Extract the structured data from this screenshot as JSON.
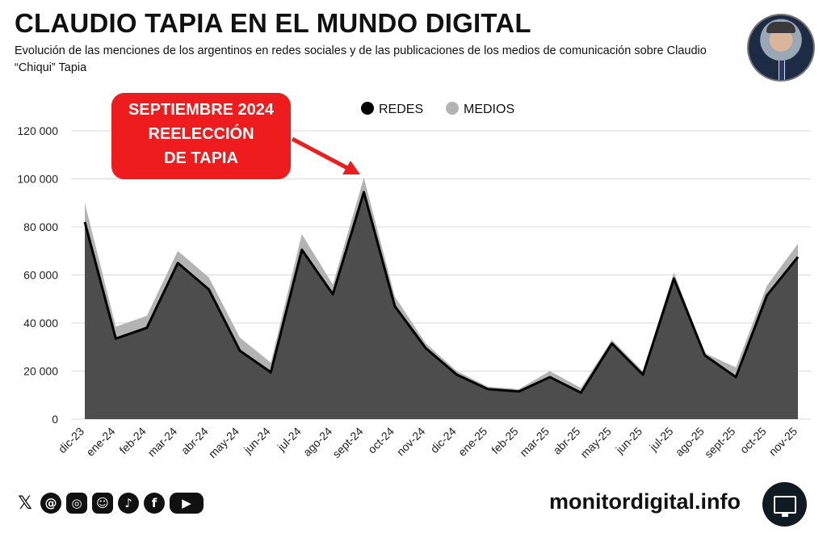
{
  "header": {
    "title": "CLAUDIO TAPIA EN EL MUNDO DIGITAL",
    "subtitle": "Evolución de las menciones de los argentinos en redes sociales y de las publicaciones de los medios de comunicación sobre Claudio “Chiqui” Tapia"
  },
  "footer": {
    "site": "monitordigital.info",
    "social_icons": [
      "x-icon",
      "threads-icon",
      "instagram-icon",
      "kick-icon",
      "tiktok-icon",
      "facebook-icon",
      "youtube-icon"
    ]
  },
  "colors": {
    "redes_fill": "#4d4d4d",
    "redes_line": "#000000",
    "medios": "#b3b3b3",
    "callout": "#ee1c1c",
    "grid": "#d9d9d9"
  },
  "chart_data": {
    "type": "area",
    "title": "CLAUDIO TAPIA EN EL MUNDO DIGITAL",
    "categories": [
      "dic-23",
      "ene-24",
      "feb-24",
      "mar-24",
      "abr-24",
      "may-24",
      "jun-24",
      "jul-24",
      "ago-24",
      "sept-24",
      "oct-24",
      "nov-24",
      "dic-24",
      "ene-25",
      "feb-25",
      "mar-25",
      "abr-25",
      "may-25",
      "jun-25",
      "jul-25",
      "ago-25",
      "sept-25",
      "oct-25",
      "nov-25"
    ],
    "series": [
      {
        "name": "REDES",
        "values": [
          82000,
          33500,
          38000,
          65000,
          54000,
          28500,
          19500,
          70500,
          52000,
          94500,
          47000,
          29500,
          18500,
          12500,
          11500,
          17500,
          11000,
          31500,
          18500,
          58500,
          26500,
          17500,
          51500,
          67500
        ]
      },
      {
        "name": "MEDIOS",
        "values": [
          90000,
          38500,
          43000,
          70000,
          59000,
          34000,
          23500,
          77000,
          56000,
          100500,
          51000,
          31500,
          20000,
          13500,
          12500,
          20000,
          13000,
          33000,
          20000,
          61000,
          27500,
          21500,
          55500,
          73000
        ]
      }
    ],
    "yticks": [
      "0",
      "20 000",
      "40 000",
      "60 000",
      "80 000",
      "100 000",
      "120 000"
    ],
    "ylim": [
      0,
      120000
    ],
    "legend": "top-center",
    "grid": true,
    "annotation": {
      "lines": [
        "SEPTIEMBRE 2024",
        "REELECCIÓN",
        "DE TAPIA"
      ],
      "target_category": "sept-24"
    }
  }
}
